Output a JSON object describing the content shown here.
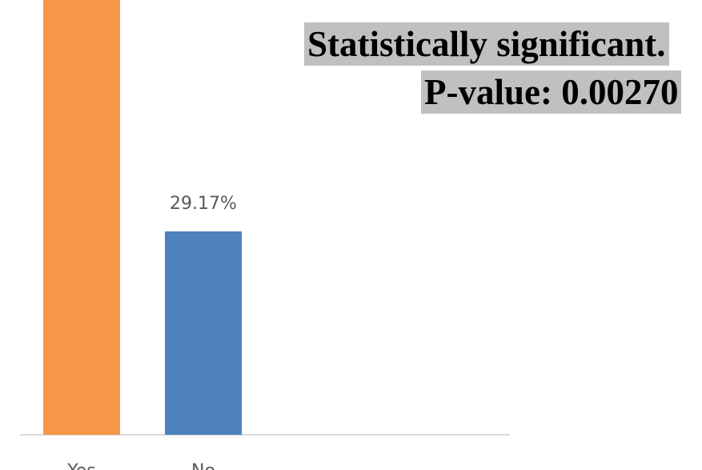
{
  "chart_data": {
    "type": "bar",
    "categories": [
      "Yes",
      "No"
    ],
    "values": [
      70.83,
      29.17
    ],
    "value_labels": [
      null,
      "29.17%"
    ],
    "colors": [
      "#f79646",
      "#4f81bd"
    ],
    "annotations": [
      "Statistically significant.",
      "P-value: 0.00270"
    ]
  }
}
